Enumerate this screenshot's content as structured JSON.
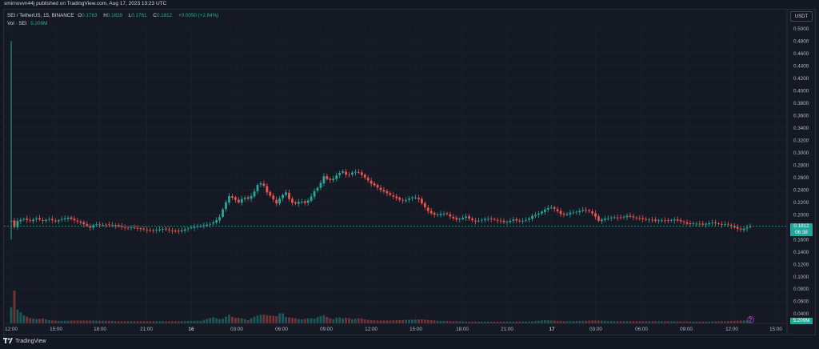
{
  "header": {
    "published_by": "smirnovvn44j published on TradingView.com, Aug 17, 2023 13:23 UTC"
  },
  "legend": {
    "symbol": "SEI / TetherUS, 15, BINANCE",
    "open_key": "O",
    "open": "0.1763",
    "high_key": "H",
    "high": "0.1828",
    "low_key": "L",
    "low": "0.1761",
    "close_key": "C",
    "close": "0.1812",
    "change": "+0.0050 (+2.84%)",
    "volume_label": "Vol · SEI",
    "volume_value": "5.209M"
  },
  "currency_button": "USDT",
  "price_axis": {
    "ticks": [
      "0.5000",
      "0.4800",
      "0.4600",
      "0.4400",
      "0.4200",
      "0.4000",
      "0.3800",
      "0.3600",
      "0.3400",
      "0.3200",
      "0.3000",
      "0.2800",
      "0.2600",
      "0.2400",
      "0.2200",
      "0.2000",
      "0.1800",
      "0.1600",
      "0.1400",
      "0.1200",
      "0.1000",
      "0.0800",
      "0.0600",
      "0.0400"
    ],
    "current_price": "0.1812",
    "countdown": "06:38",
    "volume_now": "5.209M"
  },
  "time_axis": {
    "ticks": [
      "12:00",
      "15:00",
      "18:00",
      "21:00",
      "16",
      "03:00",
      "06:00",
      "09:00",
      "12:00",
      "15:00",
      "18:00",
      "21:00",
      "17",
      "03:00",
      "06:00",
      "09:00",
      "12:00",
      "15:00"
    ]
  },
  "colors": {
    "up": "#26a69a",
    "down": "#ef5350",
    "background": "#151924"
  },
  "footer": {
    "logo_text": "TradingView"
  },
  "chart_data": {
    "type": "candlestick",
    "ylim": [
      0.03,
      0.51
    ],
    "x_ticks": [
      "12:00",
      "15:00",
      "18:00",
      "21:00",
      "16",
      "03:00",
      "06:00",
      "09:00",
      "12:00",
      "15:00",
      "18:00",
      "21:00",
      "17",
      "03:00",
      "06:00",
      "09:00",
      "12:00",
      "15:00"
    ],
    "close_path": [
      [
        0,
        0.19
      ],
      [
        4,
        0.18
      ],
      [
        8,
        0.19
      ],
      [
        16,
        0.193
      ],
      [
        24,
        0.19
      ],
      [
        32,
        0.194
      ],
      [
        40,
        0.19
      ],
      [
        48,
        0.193
      ],
      [
        56,
        0.189
      ],
      [
        64,
        0.193
      ],
      [
        72,
        0.195
      ],
      [
        80,
        0.191
      ],
      [
        88,
        0.187
      ],
      [
        96,
        0.182
      ],
      [
        100,
        0.179
      ],
      [
        106,
        0.185
      ],
      [
        114,
        0.183
      ],
      [
        122,
        0.184
      ],
      [
        130,
        0.183
      ],
      [
        138,
        0.181
      ],
      [
        146,
        0.178
      ],
      [
        154,
        0.18
      ],
      [
        162,
        0.177
      ],
      [
        170,
        0.176
      ],
      [
        178,
        0.174
      ],
      [
        186,
        0.176
      ],
      [
        194,
        0.177
      ],
      [
        200,
        0.175
      ],
      [
        206,
        0.173
      ],
      [
        214,
        0.174
      ],
      [
        222,
        0.177
      ],
      [
        230,
        0.18
      ],
      [
        238,
        0.182
      ],
      [
        246,
        0.183
      ],
      [
        252,
        0.185
      ],
      [
        258,
        0.189
      ],
      [
        264,
        0.196
      ],
      [
        270,
        0.215
      ],
      [
        276,
        0.23
      ],
      [
        282,
        0.226
      ],
      [
        288,
        0.22
      ],
      [
        294,
        0.228
      ],
      [
        300,
        0.226
      ],
      [
        306,
        0.232
      ],
      [
        312,
        0.248
      ],
      [
        318,
        0.252
      ],
      [
        324,
        0.236
      ],
      [
        330,
        0.228
      ],
      [
        336,
        0.218
      ],
      [
        342,
        0.23
      ],
      [
        348,
        0.236
      ],
      [
        354,
        0.22
      ],
      [
        360,
        0.218
      ],
      [
        366,
        0.222
      ],
      [
        372,
        0.219
      ],
      [
        378,
        0.225
      ],
      [
        384,
        0.238
      ],
      [
        390,
        0.246
      ],
      [
        396,
        0.262
      ],
      [
        402,
        0.255
      ],
      [
        408,
        0.258
      ],
      [
        414,
        0.266
      ],
      [
        420,
        0.27
      ],
      [
        426,
        0.262
      ],
      [
        432,
        0.268
      ],
      [
        438,
        0.27
      ],
      [
        444,
        0.264
      ],
      [
        450,
        0.258
      ],
      [
        456,
        0.25
      ],
      [
        462,
        0.246
      ],
      [
        468,
        0.24
      ],
      [
        474,
        0.236
      ],
      [
        480,
        0.232
      ],
      [
        486,
        0.228
      ],
      [
        492,
        0.224
      ],
      [
        498,
        0.222
      ],
      [
        504,
        0.226
      ],
      [
        510,
        0.229
      ],
      [
        516,
        0.225
      ],
      [
        522,
        0.215
      ],
      [
        528,
        0.206
      ],
      [
        534,
        0.2
      ],
      [
        540,
        0.2
      ],
      [
        546,
        0.202
      ],
      [
        552,
        0.201
      ],
      [
        558,
        0.195
      ],
      [
        564,
        0.192
      ],
      [
        570,
        0.194
      ],
      [
        576,
        0.197
      ],
      [
        582,
        0.192
      ],
      [
        588,
        0.189
      ],
      [
        594,
        0.191
      ],
      [
        600,
        0.193
      ],
      [
        606,
        0.193
      ],
      [
        612,
        0.192
      ],
      [
        618,
        0.19
      ],
      [
        624,
        0.188
      ],
      [
        630,
        0.189
      ],
      [
        636,
        0.192
      ],
      [
        642,
        0.19
      ],
      [
        648,
        0.19
      ],
      [
        654,
        0.192
      ],
      [
        660,
        0.198
      ],
      [
        666,
        0.2
      ],
      [
        672,
        0.205
      ],
      [
        678,
        0.21
      ],
      [
        684,
        0.212
      ],
      [
        690,
        0.208
      ],
      [
        696,
        0.201
      ],
      [
        702,
        0.2
      ],
      [
        708,
        0.203
      ],
      [
        714,
        0.204
      ],
      [
        720,
        0.206
      ],
      [
        726,
        0.208
      ],
      [
        732,
        0.206
      ],
      [
        738,
        0.2
      ],
      [
        744,
        0.19
      ],
      [
        750,
        0.193
      ],
      [
        756,
        0.194
      ],
      [
        762,
        0.196
      ],
      [
        768,
        0.195
      ],
      [
        774,
        0.196
      ],
      [
        780,
        0.198
      ],
      [
        786,
        0.196
      ],
      [
        792,
        0.195
      ],
      [
        798,
        0.193
      ],
      [
        804,
        0.192
      ],
      [
        810,
        0.192
      ],
      [
        816,
        0.19
      ],
      [
        822,
        0.191
      ],
      [
        828,
        0.19
      ],
      [
        834,
        0.191
      ],
      [
        840,
        0.192
      ],
      [
        846,
        0.19
      ],
      [
        852,
        0.188
      ],
      [
        858,
        0.184
      ],
      [
        864,
        0.186
      ],
      [
        870,
        0.185
      ],
      [
        876,
        0.184
      ],
      [
        882,
        0.186
      ],
      [
        888,
        0.187
      ],
      [
        894,
        0.186
      ],
      [
        900,
        0.184
      ],
      [
        906,
        0.185
      ],
      [
        912,
        0.182
      ],
      [
        918,
        0.178
      ],
      [
        924,
        0.176
      ],
      [
        930,
        0.178
      ],
      [
        936,
        0.1812
      ]
    ],
    "volume_path_millions": [
      [
        0,
        30
      ],
      [
        4,
        60
      ],
      [
        8,
        25
      ],
      [
        16,
        14
      ],
      [
        24,
        9
      ],
      [
        32,
        7
      ],
      [
        40,
        8
      ],
      [
        48,
        5
      ],
      [
        60,
        4
      ],
      [
        80,
        4
      ],
      [
        100,
        4
      ],
      [
        140,
        3
      ],
      [
        200,
        3
      ],
      [
        240,
        4
      ],
      [
        256,
        10
      ],
      [
        266,
        6
      ],
      [
        276,
        15
      ],
      [
        282,
        9
      ],
      [
        290,
        10
      ],
      [
        300,
        6
      ],
      [
        306,
        11
      ],
      [
        312,
        14
      ],
      [
        318,
        16
      ],
      [
        324,
        14
      ],
      [
        330,
        13
      ],
      [
        336,
        12
      ],
      [
        342,
        19
      ],
      [
        348,
        10
      ],
      [
        354,
        9
      ],
      [
        360,
        8
      ],
      [
        366,
        6
      ],
      [
        372,
        7
      ],
      [
        378,
        8
      ],
      [
        384,
        7
      ],
      [
        390,
        10
      ],
      [
        396,
        12
      ],
      [
        402,
        8
      ],
      [
        408,
        6
      ],
      [
        414,
        9
      ],
      [
        420,
        7
      ],
      [
        426,
        8
      ],
      [
        432,
        6
      ],
      [
        438,
        7
      ],
      [
        444,
        7
      ],
      [
        450,
        5
      ],
      [
        460,
        4
      ],
      [
        480,
        4
      ],
      [
        500,
        5
      ],
      [
        520,
        6
      ],
      [
        530,
        5
      ],
      [
        540,
        4
      ],
      [
        580,
        3
      ],
      [
        660,
        3
      ],
      [
        676,
        5
      ],
      [
        686,
        4
      ],
      [
        700,
        3
      ],
      [
        740,
        4
      ],
      [
        760,
        3
      ],
      [
        820,
        3
      ],
      [
        880,
        3
      ],
      [
        936,
        5.209
      ]
    ]
  }
}
